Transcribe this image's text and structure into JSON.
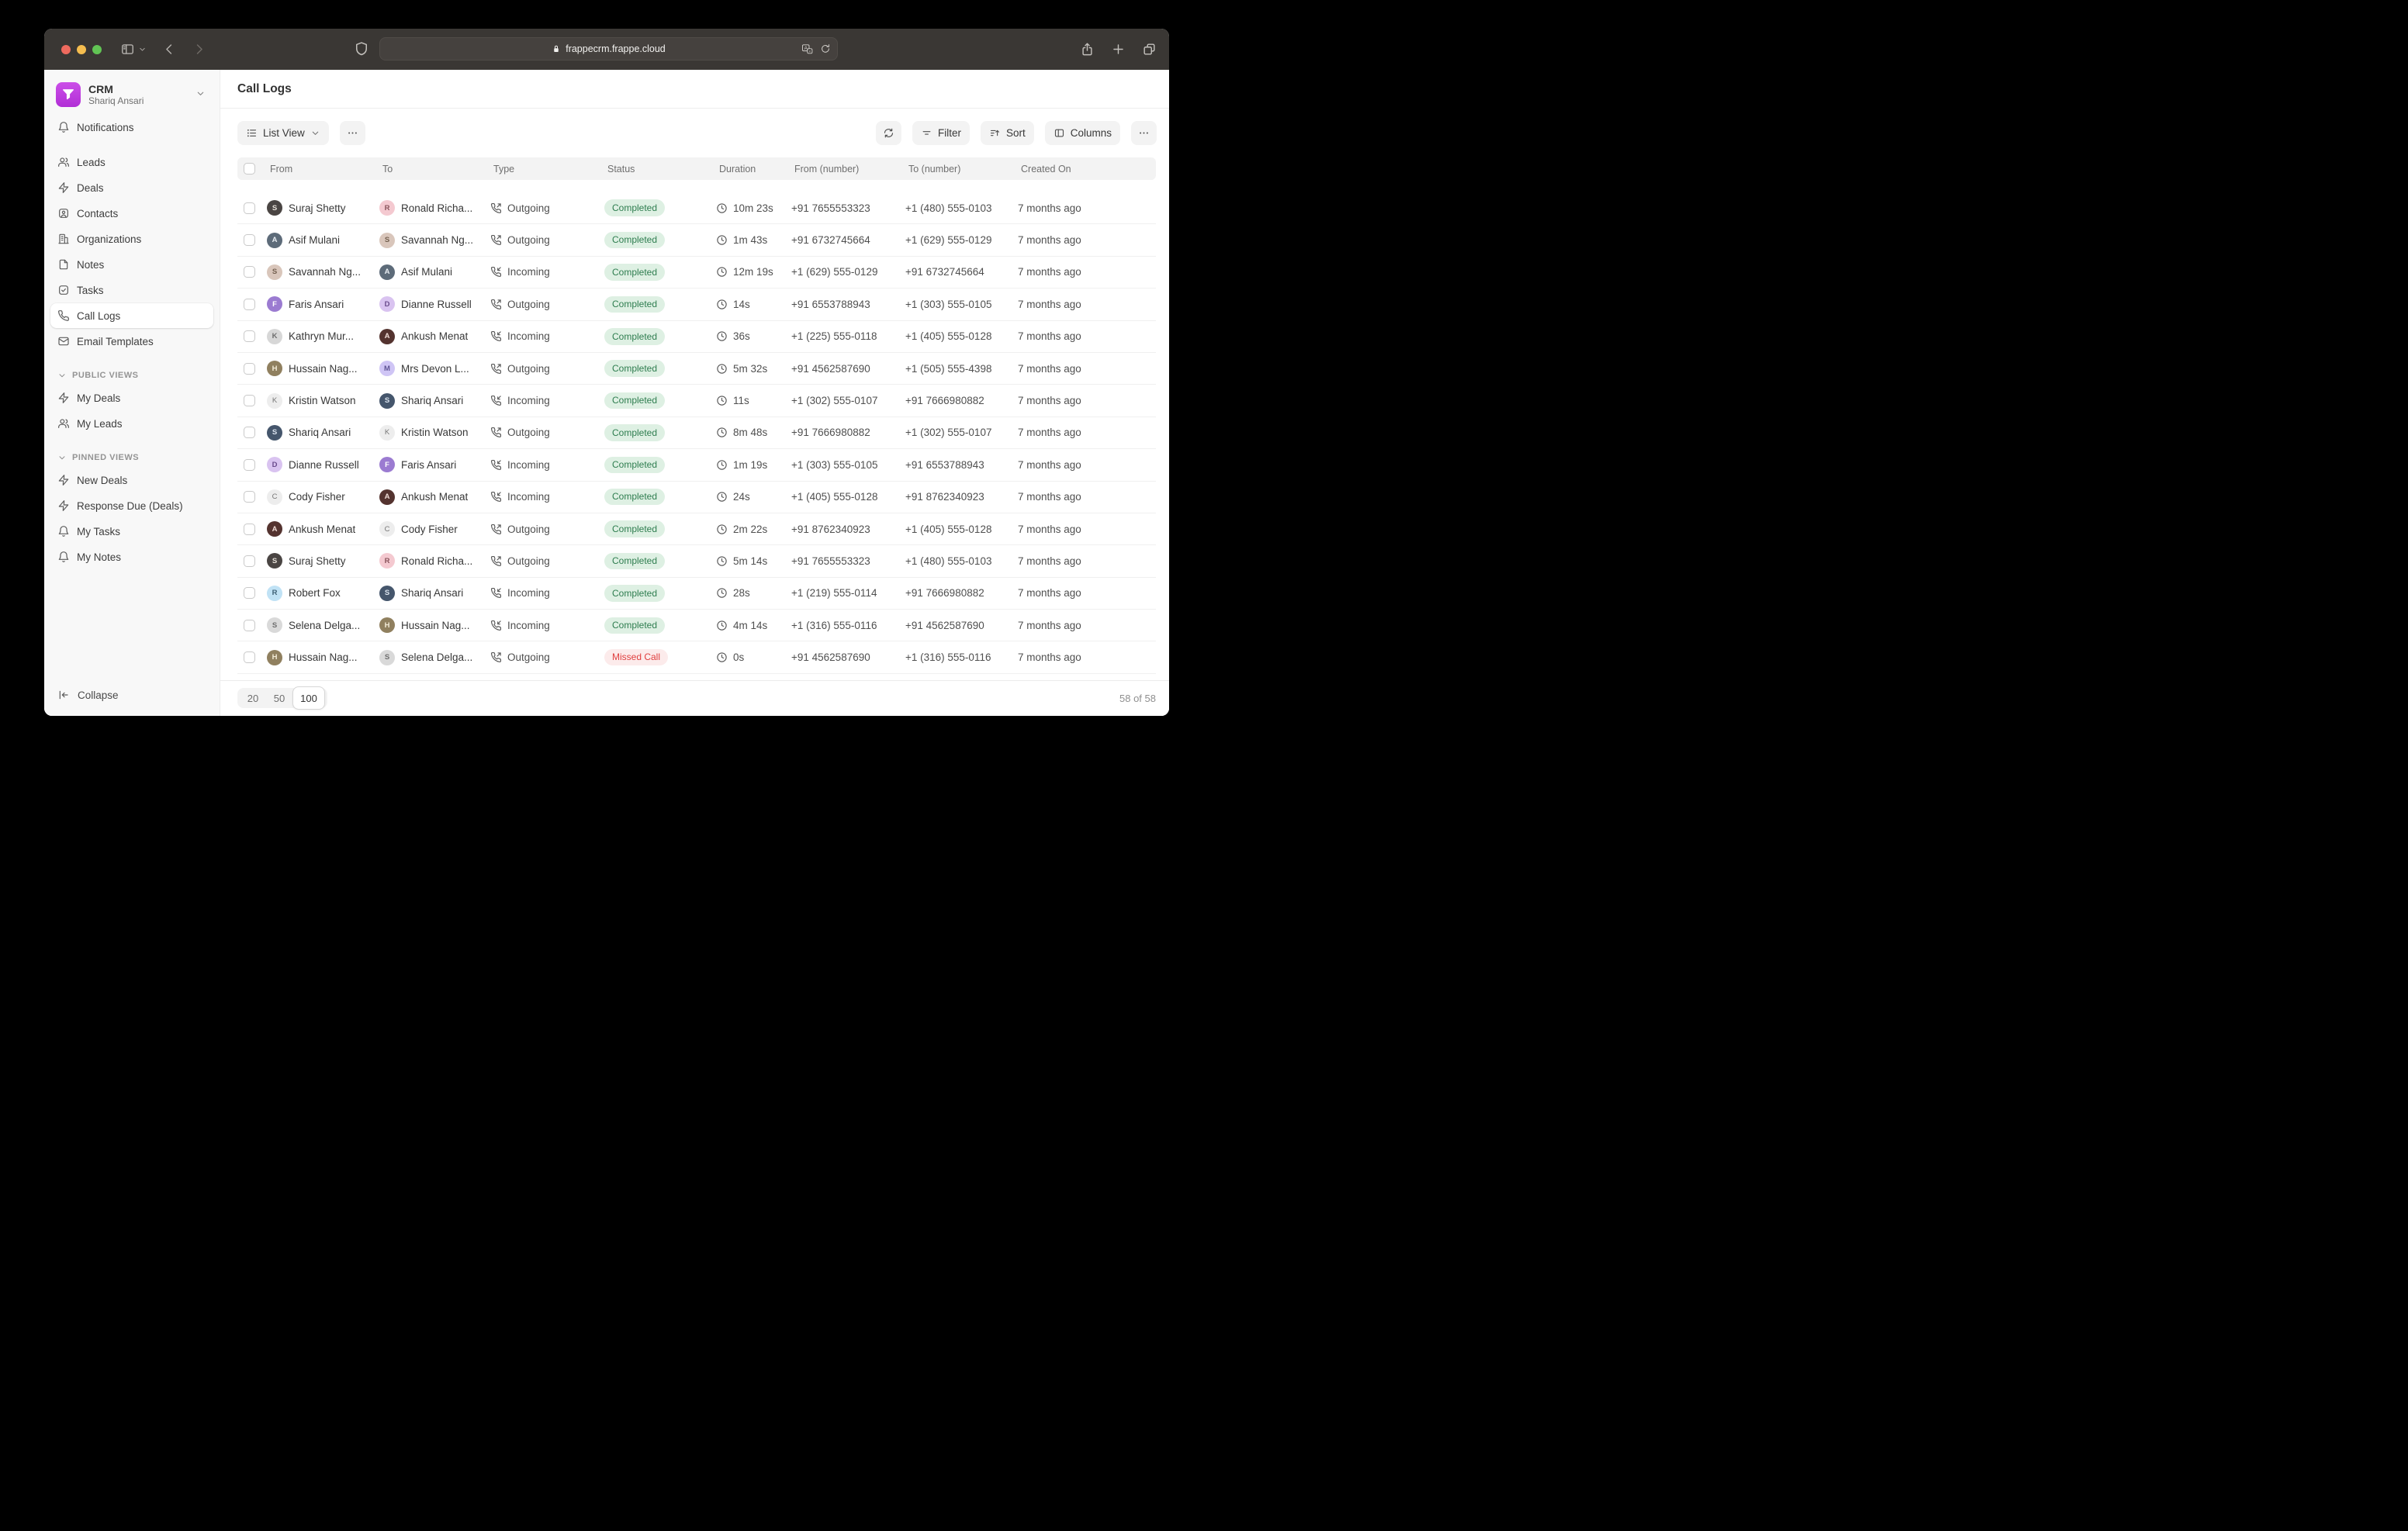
{
  "browser": {
    "url": "frappecrm.frappe.cloud"
  },
  "colors": {
    "completed_bg": "#def0e3",
    "completed_fg": "#2e7d4f",
    "missed_bg": "#fcebeb",
    "missed_fg": "#e03e3e",
    "accent_purple": "#bd3be2",
    "traffic_red": "#ee6a5e",
    "traffic_yellow": "#f5bd4f",
    "traffic_green": "#61c454"
  },
  "sidebar": {
    "workspace": {
      "title": "CRM",
      "subtitle": "Shariq Ansari"
    },
    "nav_top": [
      {
        "icon": "bell",
        "label": "Notifications"
      }
    ],
    "nav_main": [
      {
        "icon": "users",
        "label": "Leads"
      },
      {
        "icon": "zap",
        "label": "Deals"
      },
      {
        "icon": "contact",
        "label": "Contacts"
      },
      {
        "icon": "building",
        "label": "Organizations"
      },
      {
        "icon": "note",
        "label": "Notes"
      },
      {
        "icon": "check-square",
        "label": "Tasks"
      },
      {
        "icon": "phone",
        "label": "Call Logs",
        "active": true
      },
      {
        "icon": "mail",
        "label": "Email Templates"
      }
    ],
    "sections": [
      {
        "title": "PUBLIC VIEWS",
        "items": [
          {
            "icon": "zap",
            "label": "My Deals"
          },
          {
            "icon": "users",
            "label": "My Leads"
          }
        ]
      },
      {
        "title": "PINNED VIEWS",
        "items": [
          {
            "icon": "zap",
            "label": "New Deals"
          },
          {
            "icon": "zap",
            "label": "Response Due (Deals)"
          },
          {
            "icon": "bell",
            "label": "My Tasks"
          },
          {
            "icon": "bell",
            "label": "My Notes"
          }
        ]
      }
    ],
    "collapse_label": "Collapse"
  },
  "main": {
    "title": "Call Logs",
    "toolbar": {
      "view_label": "List View",
      "filter_label": "Filter",
      "sort_label": "Sort",
      "columns_label": "Columns"
    },
    "table": {
      "headers": [
        "From",
        "To",
        "Type",
        "Status",
        "Duration",
        "From (number)",
        "To (number)",
        "Created On"
      ],
      "rows": [
        {
          "from": {
            "name": "Suraj Shetty",
            "bg": "#4a4543",
            "fg": "#e8e2da",
            "t": "S"
          },
          "to": {
            "name": "Ronald Richa...",
            "bg": "#f4c9d0",
            "fg": "#8a555c",
            "t": "R"
          },
          "type": "Outgoing",
          "status": "Completed",
          "duration": "10m 23s",
          "from_number": "+91 7655553323",
          "to_number": "+1 (480) 555-0103",
          "created": "7 months ago"
        },
        {
          "from": {
            "name": "Asif Mulani",
            "bg": "#5d6b79",
            "fg": "#e9eef3",
            "t": "A"
          },
          "to": {
            "name": "Savannah Ng...",
            "bg": "#d9c6bb",
            "fg": "#73604f",
            "t": "S"
          },
          "type": "Outgoing",
          "status": "Completed",
          "duration": "1m 43s",
          "from_number": "+91 6732745664",
          "to_number": "+1 (629) 555-0129",
          "created": "7 months ago"
        },
        {
          "from": {
            "name": "Savannah Ng...",
            "bg": "#d9c6bb",
            "fg": "#73604f",
            "t": "S"
          },
          "to": {
            "name": "Asif Mulani",
            "bg": "#5d6b79",
            "fg": "#e9eef3",
            "t": "A"
          },
          "type": "Incoming",
          "status": "Completed",
          "duration": "12m 19s",
          "from_number": "+1 (629) 555-0129",
          "to_number": "+91 6732745664",
          "created": "7 months ago"
        },
        {
          "from": {
            "name": "Faris Ansari",
            "bg": "#9b7bd1",
            "fg": "#ffffff",
            "t": "F"
          },
          "to": {
            "name": "Dianne Russell",
            "bg": "#d9c3f0",
            "fg": "#6a4b8c",
            "t": "D"
          },
          "type": "Outgoing",
          "status": "Completed",
          "duration": "14s",
          "from_number": "+91 6553788943",
          "to_number": "+1 (303) 555-0105",
          "created": "7 months ago"
        },
        {
          "from": {
            "name": "Kathryn Mur...",
            "bg": "#d7d7d7",
            "fg": "#6d6d6d",
            "t": "K"
          },
          "to": {
            "name": "Ankush Menat",
            "bg": "#54332f",
            "fg": "#f0dcd6",
            "t": "A"
          },
          "type": "Incoming",
          "status": "Completed",
          "duration": "36s",
          "from_number": "+1 (225) 555-0118",
          "to_number": "+1 (405) 555-0128",
          "created": "7 months ago"
        },
        {
          "from": {
            "name": "Hussain Nag...",
            "bg": "#90805f",
            "fg": "#f4ecd8",
            "t": "H"
          },
          "to": {
            "name": "Mrs Devon L...",
            "bg": "#cfc5f5",
            "fg": "#5f5494",
            "t": "M"
          },
          "type": "Outgoing",
          "status": "Completed",
          "duration": "5m 32s",
          "from_number": "+91 4562587690",
          "to_number": "+1 (505) 555-4398",
          "created": "7 months ago"
        },
        {
          "from": {
            "name": "Kristin Watson",
            "bg": "#ededed",
            "fg": "#767676",
            "t": "K",
            "letter": true
          },
          "to": {
            "name": "Shariq Ansari",
            "bg": "#45566c",
            "fg": "#dbe4ef",
            "t": "S"
          },
          "type": "Incoming",
          "status": "Completed",
          "duration": "11s",
          "from_number": "+1 (302) 555-0107",
          "to_number": "+91 7666980882",
          "created": "7 months ago"
        },
        {
          "from": {
            "name": "Shariq Ansari",
            "bg": "#45566c",
            "fg": "#dbe4ef",
            "t": "S"
          },
          "to": {
            "name": "Kristin Watson",
            "bg": "#ededed",
            "fg": "#767676",
            "t": "K",
            "letter": true
          },
          "type": "Outgoing",
          "status": "Completed",
          "duration": "8m 48s",
          "from_number": "+91 7666980882",
          "to_number": "+1 (302) 555-0107",
          "created": "7 months ago"
        },
        {
          "from": {
            "name": "Dianne Russell",
            "bg": "#d9c3f0",
            "fg": "#6a4b8c",
            "t": "D"
          },
          "to": {
            "name": "Faris Ansari",
            "bg": "#9b7bd1",
            "fg": "#ffffff",
            "t": "F"
          },
          "type": "Incoming",
          "status": "Completed",
          "duration": "1m 19s",
          "from_number": "+1 (303) 555-0105",
          "to_number": "+91 6553788943",
          "created": "7 months ago"
        },
        {
          "from": {
            "name": "Cody Fisher",
            "bg": "#ededed",
            "fg": "#767676",
            "t": "C",
            "letter": true
          },
          "to": {
            "name": "Ankush Menat",
            "bg": "#54332f",
            "fg": "#f0dcd6",
            "t": "A"
          },
          "type": "Incoming",
          "status": "Completed",
          "duration": "24s",
          "from_number": "+1 (405) 555-0128",
          "to_number": "+91 8762340923",
          "created": "7 months ago"
        },
        {
          "from": {
            "name": "Ankush Menat",
            "bg": "#54332f",
            "fg": "#f0dcd6",
            "t": "A"
          },
          "to": {
            "name": "Cody Fisher",
            "bg": "#ededed",
            "fg": "#767676",
            "t": "C",
            "letter": true
          },
          "type": "Outgoing",
          "status": "Completed",
          "duration": "2m 22s",
          "from_number": "+91 8762340923",
          "to_number": "+1 (405) 555-0128",
          "created": "7 months ago"
        },
        {
          "from": {
            "name": "Suraj Shetty",
            "bg": "#4a4543",
            "fg": "#e8e2da",
            "t": "S"
          },
          "to": {
            "name": "Ronald Richa...",
            "bg": "#f4c9d0",
            "fg": "#8a555c",
            "t": "R"
          },
          "type": "Outgoing",
          "status": "Completed",
          "duration": "5m 14s",
          "from_number": "+91 7655553323",
          "to_number": "+1 (480) 555-0103",
          "created": "7 months ago"
        },
        {
          "from": {
            "name": "Robert Fox",
            "bg": "#c0e2f5",
            "fg": "#3f6277",
            "t": "R"
          },
          "to": {
            "name": "Shariq Ansari",
            "bg": "#45566c",
            "fg": "#dbe4ef",
            "t": "S"
          },
          "type": "Incoming",
          "status": "Completed",
          "duration": "28s",
          "from_number": "+1 (219) 555-0114",
          "to_number": "+91 7666980882",
          "created": "7 months ago"
        },
        {
          "from": {
            "name": "Selena Delga...",
            "bg": "#d9d9d9",
            "fg": "#6d6d6d",
            "t": "S"
          },
          "to": {
            "name": "Hussain Nag...",
            "bg": "#90805f",
            "fg": "#f4ecd8",
            "t": "H"
          },
          "type": "Incoming",
          "status": "Completed",
          "duration": "4m 14s",
          "from_number": "+1 (316) 555-0116",
          "to_number": "+91 4562587690",
          "created": "7 months ago"
        },
        {
          "from": {
            "name": "Hussain Nag...",
            "bg": "#90805f",
            "fg": "#f4ecd8",
            "t": "H"
          },
          "to": {
            "name": "Selena Delga...",
            "bg": "#d9d9d9",
            "fg": "#6d6d6d",
            "t": "S"
          },
          "type": "Outgoing",
          "status": "Missed Call",
          "duration": "0s",
          "from_number": "+91 4562587690",
          "to_number": "+1 (316) 555-0116",
          "created": "7 months ago"
        }
      ]
    },
    "pagination": {
      "options": [
        "20",
        "50",
        "100"
      ],
      "selected": "100",
      "count": "58 of 58"
    }
  }
}
